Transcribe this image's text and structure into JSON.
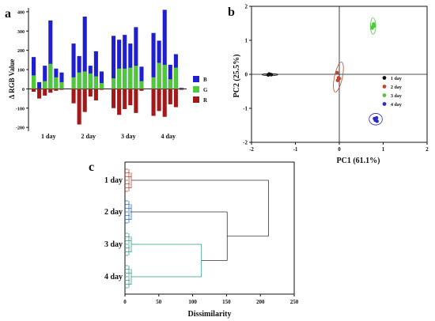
{
  "panel_labels": {
    "a": "a",
    "b": "b",
    "c": "c"
  },
  "chart_data": [
    {
      "panel": "a",
      "type": "bar",
      "ylabel": "Δ RGB Value",
      "ylim": [
        -220,
        420
      ],
      "yticks": [
        -200,
        -100,
        0,
        100,
        200,
        300,
        400
      ],
      "groups": [
        "1 day",
        "2 day",
        "3 day",
        "4 day"
      ],
      "bars_per_group": 6,
      "legend": [
        {
          "name": "B",
          "color": "#1f1fd0"
        },
        {
          "name": "G",
          "color": "#4fc83a"
        },
        {
          "name": "R",
          "color": "#a31818"
        }
      ],
      "series": [
        {
          "name": "B",
          "values": [
            165,
            35,
            120,
            355,
            105,
            85,
            235,
            170,
            375,
            120,
            195,
            90,
            275,
            255,
            280,
            235,
            320,
            115,
            290,
            250,
            410,
            125,
            180,
            5
          ]
        },
        {
          "name": "G",
          "values": [
            70,
            -10,
            40,
            130,
            60,
            35,
            60,
            85,
            90,
            80,
            65,
            30,
            55,
            105,
            105,
            110,
            120,
            40,
            60,
            135,
            125,
            50,
            110,
            -5
          ]
        },
        {
          "name": "R",
          "values": [
            -15,
            -50,
            -35,
            -20,
            -10,
            -5,
            -75,
            -185,
            -120,
            -40,
            -60,
            -5,
            -100,
            -135,
            -105,
            -85,
            -125,
            -10,
            -140,
            -115,
            -145,
            -80,
            -95,
            -5
          ]
        }
      ]
    },
    {
      "panel": "b",
      "type": "scatter",
      "xlabel": "PC1 (61.1%)",
      "ylabel": "PC2 (25.5%)",
      "xlim": [
        -2,
        2
      ],
      "ylim": [
        -2,
        2
      ],
      "xticks": [
        -2,
        -1,
        0,
        1,
        2
      ],
      "yticks": [
        -2,
        -1,
        0,
        1,
        2
      ],
      "legend": [
        {
          "name": "1 day",
          "color": "#111111"
        },
        {
          "name": "2 day",
          "color": "#c1442e"
        },
        {
          "name": "3 day",
          "color": "#4fc83a"
        },
        {
          "name": "4 day",
          "color": "#2a2ac8"
        }
      ],
      "series": [
        {
          "name": "1 day",
          "points": [
            [
              -1.62,
              -0.02
            ],
            [
              -1.58,
              0.0
            ],
            [
              -1.55,
              -0.01
            ],
            [
              -1.6,
              0.01
            ]
          ],
          "ellipse": {
            "cx": -1.58,
            "cy": -0.01,
            "rx": 0.18,
            "ry": 0.03,
            "angle": 0
          }
        },
        {
          "name": "2 day",
          "points": [
            [
              -0.05,
              0.05
            ],
            [
              -0.02,
              -0.1
            ],
            [
              -0.04,
              -0.18
            ],
            [
              0.0,
              -0.12
            ]
          ],
          "ellipse": {
            "cx": -0.02,
            "cy": -0.08,
            "rx": 0.09,
            "ry": 0.45,
            "angle": 12
          }
        },
        {
          "name": "3 day",
          "points": [
            [
              0.76,
              1.4
            ],
            [
              0.78,
              1.48
            ],
            [
              0.75,
              1.36
            ],
            [
              0.8,
              1.42
            ]
          ],
          "ellipse": {
            "cx": 0.77,
            "cy": 1.42,
            "rx": 0.06,
            "ry": 0.24,
            "angle": 0
          }
        },
        {
          "name": "4 day",
          "points": [
            [
              0.8,
              -1.3
            ],
            [
              0.82,
              -1.35
            ],
            [
              0.85,
              -1.28
            ],
            [
              0.86,
              -1.38
            ]
          ],
          "ellipse": {
            "cx": 0.83,
            "cy": -1.32,
            "rx": 0.15,
            "ry": 0.17,
            "angle": 0
          }
        }
      ]
    },
    {
      "panel": "c",
      "type": "dendrogram",
      "xlabel": "Dissimilarity",
      "xlim": [
        0,
        250
      ],
      "xticks": [
        0,
        50,
        100,
        150,
        200,
        250
      ],
      "clusters": [
        {
          "name": "1 day",
          "color": "#c1442e"
        },
        {
          "name": "2 day",
          "color": "#2a6fc8"
        },
        {
          "name": "3 day",
          "color": "#2e9e8a"
        },
        {
          "name": "4 day",
          "color": "#2e9e8a"
        }
      ],
      "merges": [
        {
          "between": [
            "3 day",
            "4 day"
          ],
          "height": 113,
          "color": "#2e9e8a"
        },
        {
          "between": [
            "2 day",
            "3 day + 4 day"
          ],
          "height": 151,
          "color": "#333333"
        },
        {
          "between": [
            "1 day",
            "rest"
          ],
          "height": 212,
          "color": "#333333"
        }
      ]
    }
  ]
}
